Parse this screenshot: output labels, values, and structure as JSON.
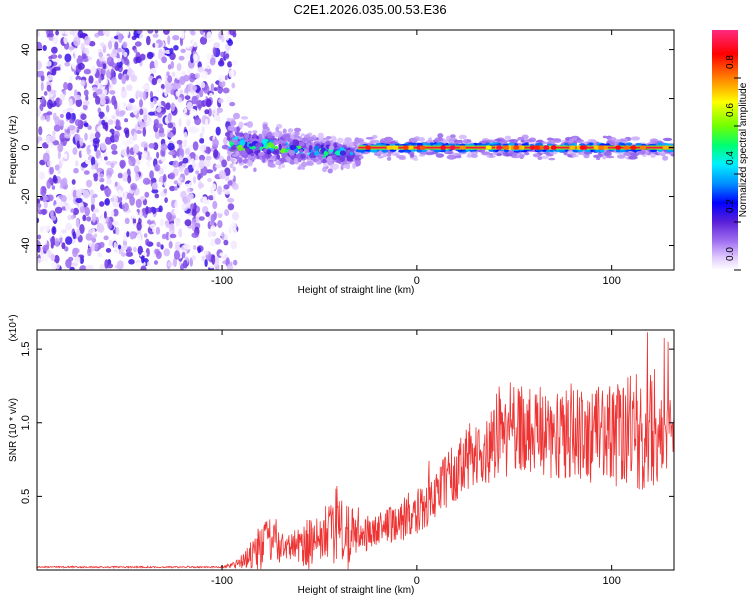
{
  "title": "C2E1.2026.035.00.53.E36",
  "chart_data": [
    {
      "type": "heatmap",
      "name": "spectrogram",
      "xlabel": "Height of straight line (km)",
      "ylabel": "Frequency (Hz)",
      "xlim": [
        -195,
        132
      ],
      "ylim": [
        -50,
        48
      ],
      "xticks": [
        -100,
        0,
        100
      ],
      "xtick_labels": [
        "-100",
        "0",
        "100"
      ],
      "yticks": [
        -40,
        -20,
        0,
        20,
        40
      ],
      "ytick_labels": [
        "-40",
        "-20",
        "0",
        "20",
        "40"
      ],
      "colorbar": {
        "label": "Normalized spectral amplitude",
        "range": [
          0,
          1
        ],
        "ticks": [
          0.0,
          0.2,
          0.4,
          0.6,
          0.8
        ],
        "tick_labels": [
          "0.0",
          "0.2",
          "0.4",
          "0.6",
          "0.8"
        ],
        "colormap": [
          "#ffffff",
          "#d6b8ff",
          "#8a40e8",
          "#5a20d8",
          "#0000ff",
          "#00c8ff",
          "#00ff80",
          "#60ff00",
          "#ffff00",
          "#ff8000",
          "#ff0000",
          "#ff2080"
        ]
      },
      "regions": [
        {
          "description_x_range": [
            -195,
            -97
          ],
          "freq_range": [
            -50,
            48
          ],
          "amplitude": 0.1,
          "kind": "noise"
        },
        {
          "description_x_range": [
            -97,
            -30
          ],
          "freq_center_start": 2,
          "freq_center_end": -3,
          "freq_spread": 8,
          "amplitude": 0.35,
          "kind": "onset"
        },
        {
          "description_x_range": [
            -30,
            132
          ],
          "freq_center": 0,
          "amplitude": 0.95,
          "kind": "tone"
        }
      ]
    },
    {
      "type": "line",
      "name": "snr",
      "xlabel": "Height of straight line (km)",
      "ylabel": "SNR (10 * v/v)",
      "exponent_label": "(x10⁴)",
      "color": "#ee3333",
      "xlim": [
        -195,
        132
      ],
      "ylim": [
        0,
        1.63
      ],
      "xticks": [
        -100,
        0,
        100
      ],
      "xtick_labels": [
        "-100",
        "0",
        "100"
      ],
      "yticks": [
        0.5,
        1.0,
        1.5
      ],
      "ytick_labels": [
        "0.5",
        "1.0",
        "1.5"
      ],
      "envelope": {
        "x": [
          -195,
          -100,
          -92,
          -85,
          -80,
          -75,
          -70,
          -65,
          -60,
          -55,
          -50,
          -45,
          -40,
          -35,
          -30,
          -25,
          -20,
          -15,
          -10,
          -5,
          0,
          5,
          10,
          15,
          20,
          25,
          30,
          35,
          40,
          45,
          50,
          55,
          60,
          70,
          80,
          90,
          100,
          110,
          120,
          125,
          132
        ],
        "base": [
          0.02,
          0.02,
          0.04,
          0.1,
          0.16,
          0.18,
          0.16,
          0.15,
          0.17,
          0.2,
          0.22,
          0.25,
          0.28,
          0.27,
          0.25,
          0.23,
          0.28,
          0.3,
          0.33,
          0.36,
          0.4,
          0.45,
          0.52,
          0.6,
          0.68,
          0.75,
          0.8,
          0.85,
          0.92,
          0.96,
          0.95,
          0.94,
          0.93,
          0.92,
          0.91,
          0.92,
          0.93,
          0.94,
          0.95,
          0.96,
          0.97
        ],
        "amp": [
          0.005,
          0.005,
          0.03,
          0.1,
          0.16,
          0.18,
          0.12,
          0.08,
          0.15,
          0.2,
          0.16,
          0.22,
          0.25,
          0.32,
          0.15,
          0.1,
          0.1,
          0.12,
          0.14,
          0.16,
          0.16,
          0.16,
          0.18,
          0.2,
          0.22,
          0.22,
          0.24,
          0.28,
          0.3,
          0.32,
          0.34,
          0.32,
          0.3,
          0.3,
          0.32,
          0.34,
          0.36,
          0.4,
          0.42,
          0.4,
          0.34
        ]
      }
    }
  ]
}
